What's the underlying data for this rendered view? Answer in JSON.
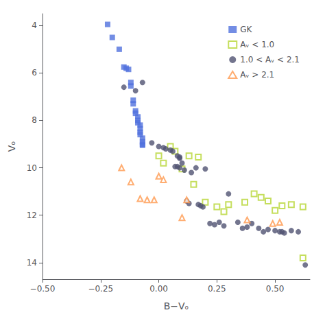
{
  "chart_data": {
    "type": "scatter",
    "xlabel": "B−Vₒ",
    "ylabel": "Vₒ",
    "xlim": [
      -0.5,
      0.65
    ],
    "ylim": [
      14.7,
      3.5
    ],
    "xticks": [
      {
        "value": -0.5,
        "label": "−0.50"
      },
      {
        "value": -0.25,
        "label": "−0.25"
      },
      {
        "value": 0.0,
        "label": "0.00"
      },
      {
        "value": 0.25,
        "label": "0.25"
      },
      {
        "value": 0.5,
        "label": "0.50"
      }
    ],
    "yticks": [
      4,
      6,
      8,
      10,
      12,
      14
    ],
    "grid": false,
    "legend": "upper right",
    "series": [
      {
        "name": "GK",
        "marker": "square",
        "x": [
          -0.22,
          -0.2,
          -0.17,
          -0.15,
          -0.14,
          -0.13,
          -0.12,
          -0.12,
          -0.11,
          -0.11,
          -0.1,
          -0.1,
          -0.09,
          -0.09,
          -0.09,
          -0.08,
          -0.08,
          -0.08,
          -0.08,
          -0.07,
          -0.07,
          -0.07,
          -0.07
        ],
        "values": [
          3.95,
          4.5,
          5.0,
          5.75,
          5.8,
          5.85,
          6.4,
          6.55,
          7.15,
          7.3,
          7.6,
          7.7,
          7.85,
          8.0,
          8.1,
          8.2,
          8.35,
          8.5,
          8.6,
          8.75,
          8.9,
          9.0,
          9.05
        ]
      },
      {
        "name": "Aᵥ < 1.0",
        "marker": "open-square",
        "x": [
          0.0,
          0.02,
          0.05,
          0.07,
          0.1,
          0.13,
          0.15,
          0.17,
          0.2,
          0.25,
          0.28,
          0.3,
          0.37,
          0.41,
          0.44,
          0.47,
          0.5,
          0.53,
          0.57,
          0.62,
          0.62
        ],
        "values": [
          9.5,
          9.8,
          9.1,
          9.3,
          10.05,
          9.5,
          10.7,
          9.55,
          11.45,
          11.65,
          11.85,
          11.55,
          11.45,
          11.1,
          11.25,
          11.4,
          11.8,
          11.6,
          11.55,
          11.65,
          13.8
        ]
      },
      {
        "name": "1.0 < Aᵥ < 2.1",
        "marker": "circle",
        "x": [
          -0.15,
          -0.1,
          -0.07,
          -0.03,
          0.0,
          0.02,
          0.03,
          0.05,
          0.06,
          0.07,
          0.08,
          0.08,
          0.09,
          0.09,
          0.09,
          0.1,
          0.11,
          0.12,
          0.13,
          0.14,
          0.16,
          0.17,
          0.18,
          0.19,
          0.2,
          0.22,
          0.24,
          0.26,
          0.28,
          0.3,
          0.34,
          0.36,
          0.38,
          0.4,
          0.43,
          0.45,
          0.47,
          0.5,
          0.52,
          0.53,
          0.54,
          0.57,
          0.6,
          0.63
        ],
        "values": [
          6.6,
          6.75,
          6.4,
          8.95,
          9.1,
          9.15,
          9.2,
          9.25,
          9.3,
          9.95,
          9.95,
          9.5,
          9.55,
          9.6,
          10.0,
          9.8,
          10.1,
          11.4,
          11.5,
          10.2,
          10.0,
          11.55,
          11.6,
          11.65,
          10.05,
          12.35,
          12.4,
          12.3,
          12.45,
          11.1,
          12.3,
          12.55,
          12.5,
          12.35,
          12.55,
          12.7,
          12.6,
          12.65,
          12.7,
          12.7,
          12.75,
          12.65,
          12.7,
          14.1
        ]
      },
      {
        "name": "Aᵥ > 2.1",
        "marker": "open-triangle",
        "x": [
          -0.16,
          -0.12,
          -0.08,
          -0.05,
          -0.02,
          0.0,
          0.02,
          0.1,
          0.12,
          0.38,
          0.49,
          0.52
        ],
        "values": [
          10.0,
          10.6,
          11.3,
          11.35,
          11.35,
          10.35,
          10.5,
          12.1,
          11.35,
          12.2,
          12.35,
          12.3
        ]
      }
    ]
  }
}
